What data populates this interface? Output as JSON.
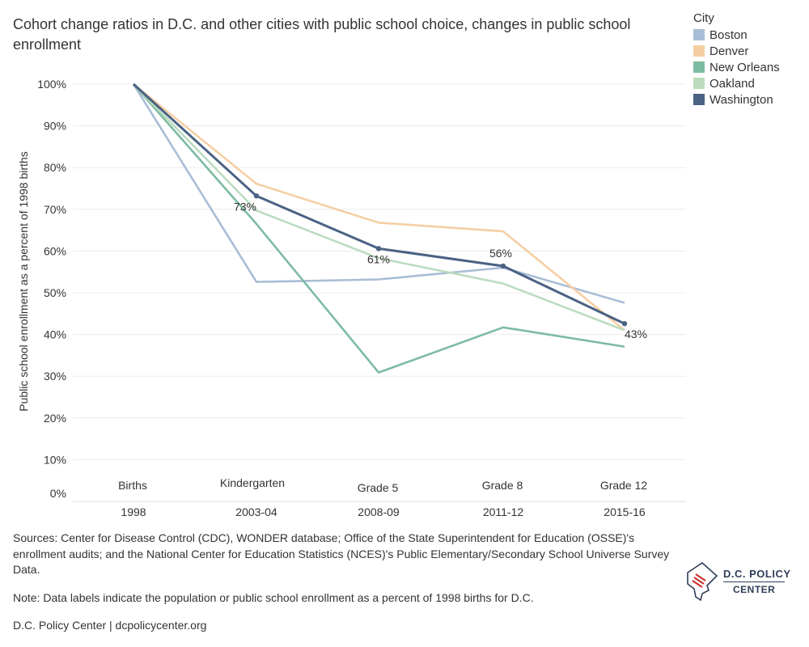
{
  "chart_data": {
    "type": "line",
    "title": "Cohort change ratios in D.C. and other cities with public school choice, changes in public school enrollment",
    "xlabel": "",
    "ylabel": "Public school enrollment as a percent of 1998 births",
    "ylim": [
      0,
      100
    ],
    "yticks": [
      "0%",
      "10%",
      "20%",
      "30%",
      "40%",
      "50%",
      "60%",
      "70%",
      "80%",
      "90%",
      "100%"
    ],
    "categories": [
      {
        "stage": "Births",
        "year": "1998"
      },
      {
        "stage": "Kindergarten",
        "year": "2003-04"
      },
      {
        "stage": "Grade 5",
        "year": "2008-09"
      },
      {
        "stage": "Grade 8",
        "year": "2011-12"
      },
      {
        "stage": "Grade 12",
        "year": "2015-16"
      }
    ],
    "legend_title": "City",
    "legend_position": "top-right",
    "series": [
      {
        "name": "Boston",
        "color": "#a9bdd6",
        "values": [
          100,
          52.6,
          53.2,
          56.0,
          47.6
        ]
      },
      {
        "name": "Denver",
        "color": "#f5cfa4",
        "values": [
          100,
          76.1,
          66.8,
          64.7,
          41.0
        ]
      },
      {
        "name": "New Orleans",
        "color": "#7dbba3",
        "values": [
          100,
          66.5,
          30.9,
          41.7,
          37.1
        ]
      },
      {
        "name": "Oakland",
        "color": "#bcdcbf",
        "values": [
          100,
          69.7,
          58.3,
          52.2,
          41.0
        ]
      },
      {
        "name": "Washington",
        "color": "#4a6283",
        "values": [
          100,
          73.2,
          60.6,
          56.4,
          42.6
        ],
        "markers": true
      }
    ],
    "annotations": [
      {
        "series": "Washington",
        "index": 1,
        "label": "73%"
      },
      {
        "series": "Washington",
        "index": 2,
        "label": "61%"
      },
      {
        "series": "Washington",
        "index": 3,
        "label": "56%"
      },
      {
        "series": "Washington",
        "index": 4,
        "label": "43%"
      }
    ]
  },
  "footer": {
    "sources": "Sources: Center for Disease Control (CDC), WONDER database; Office of the State Superintendent for Education (OSSE)'s enrollment audits; and the National Center for Education Statistics (NCES)'s Public Elementary/Secondary School Universe Survey Data.",
    "note": "Note: Data labels indicate the population or public school enrollment as a percent of 1998 births for D.C.",
    "credit": "D.C. Policy Center | dcpolicycenter.org"
  },
  "logo": {
    "line1": "D.C. POLICY",
    "line2": "CENTER"
  }
}
